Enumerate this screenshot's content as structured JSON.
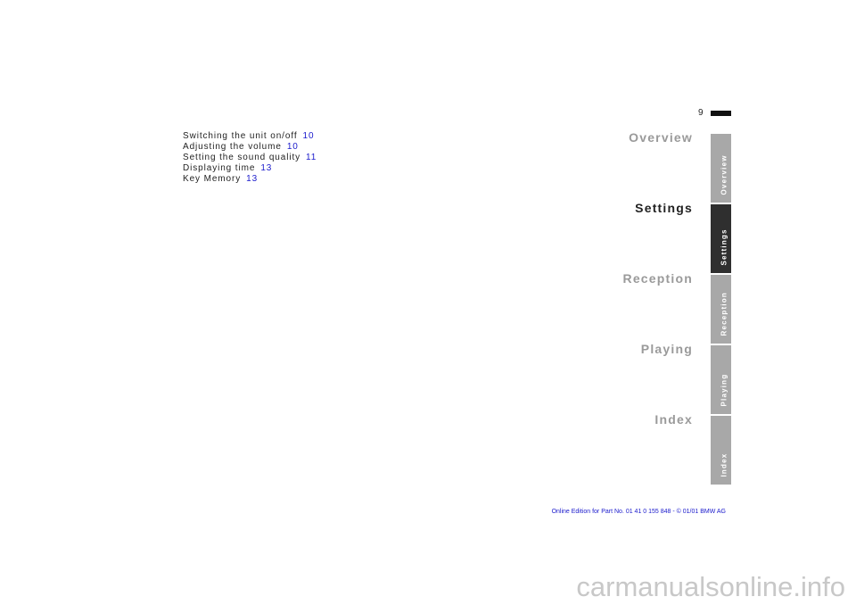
{
  "page_number": "9",
  "toc": [
    {
      "text": "Switching the unit on/off",
      "page": "10"
    },
    {
      "text": "Adjusting the volume",
      "page": "10"
    },
    {
      "text": "Setting the sound quality",
      "page": "11"
    },
    {
      "text": "Displaying time",
      "page": "13"
    },
    {
      "text": "Key Memory",
      "page": "13"
    }
  ],
  "sections": [
    {
      "label": "Overview",
      "active": false
    },
    {
      "label": "Settings",
      "active": true
    },
    {
      "label": "Reception",
      "active": false
    },
    {
      "label": "Playing",
      "active": false
    },
    {
      "label": "Index",
      "active": false
    }
  ],
  "footer": "Online Edition for Part No. 01 41 0 155 848 - © 01/01 BMW AG",
  "watermark": "carmanualsonline.info"
}
